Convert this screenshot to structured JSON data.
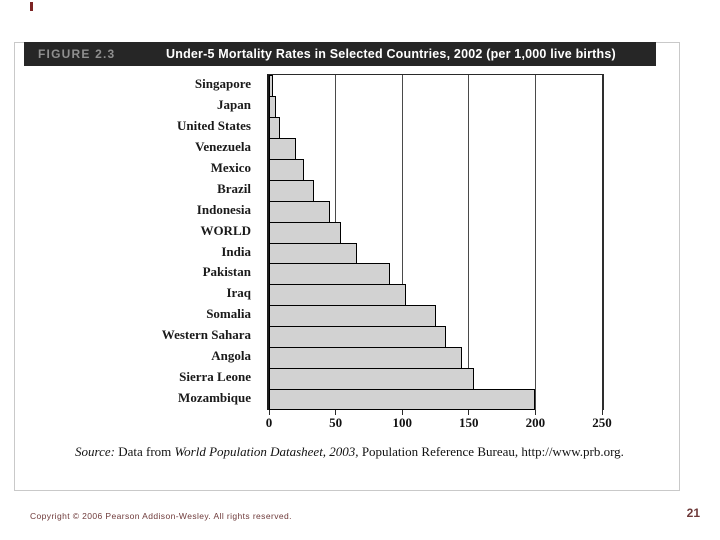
{
  "figure": {
    "label": "FIGURE 2.3",
    "title": "Under-5 Mortality Rates in Selected Countries, 2002 (per 1,000 live births)"
  },
  "chart_data": {
    "type": "bar",
    "orientation": "horizontal",
    "title": "Under-5 Mortality Rates in Selected Countries, 2002 (per 1,000 live births)",
    "categories": [
      "Singapore",
      "Japan",
      "United States",
      "Venezuela",
      "Mexico",
      "Brazil",
      "Indonesia",
      "WORLD",
      "India",
      "Pakistan",
      "Iraq",
      "Somalia",
      "Western Sahara",
      "Angola",
      "Sierra Leone",
      "Mozambique"
    ],
    "values": [
      3,
      5,
      8,
      20,
      26,
      34,
      46,
      54,
      66,
      91,
      103,
      125,
      133,
      145,
      154,
      200
    ],
    "xlabel": "",
    "ylabel": "",
    "xlim": [
      0,
      250
    ],
    "x_ticks": [
      0,
      50,
      100,
      150,
      200,
      250
    ],
    "grid": true,
    "legend": false,
    "bar_color": "#d2d2d2"
  },
  "source": {
    "prefix": "Source: ",
    "text1": "Data from ",
    "italic_title": "World Population Datasheet, 2003, ",
    "text2": "Population Reference Bureau, http://www.prb.org."
  },
  "footer": {
    "copyright": "Copyright © 2006 Pearson Addison-Wesley. All rights reserved.",
    "page_number": "21"
  },
  "colors": {
    "titlebar_bg": "#262626",
    "figure_label": "#8f8f8f",
    "title_text": "#ffffff",
    "bar_fill": "#d2d2d2",
    "bar_border": "#000000",
    "footer_text": "#6e3a3a",
    "accent_tick": "#7d2424"
  }
}
